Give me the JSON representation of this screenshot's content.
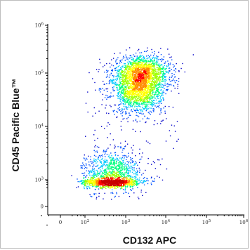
{
  "chart_data": {
    "type": "scatter",
    "subtype": "flow cytometry density dot plot (biexponential axes)",
    "xlabel": "CD132 APC",
    "ylabel": "CD45 Pacific Blue™",
    "x_scale": "biexponential",
    "y_scale": "biexponential",
    "x_ticks": [
      {
        "label": "0",
        "value": 0
      },
      {
        "label": "10",
        "sup": "2",
        "value": 100
      },
      {
        "label": "10",
        "sup": "3",
        "value": 1000
      },
      {
        "label": "10",
        "sup": "4",
        "value": 10000
      },
      {
        "label": "10",
        "sup": "5",
        "value": 100000
      },
      {
        "label": "10",
        "sup": "6",
        "value": 1000000
      }
    ],
    "y_ticks": [
      {
        "label": "0",
        "value": 0
      },
      {
        "label": "10",
        "sup": "3",
        "value": 1000
      },
      {
        "label": "10",
        "sup": "4",
        "value": 10000
      },
      {
        "label": "10",
        "sup": "5",
        "value": 100000
      },
      {
        "label": "10",
        "sup": "6",
        "value": 1000000
      }
    ],
    "grid": false,
    "legend": "none",
    "colormap": [
      "#0000c8",
      "#0050ff",
      "#00c8ff",
      "#00ff80",
      "#a0ff00",
      "#ffff00",
      "#ff8c00",
      "#ff0000",
      "#c80000"
    ],
    "populations": [
      {
        "x_center": 450,
        "y_center": 900,
        "x_spread_decades": 0.35,
        "y_spread_decades": 0.28,
        "relative_density": 1.0
      },
      {
        "x_center": 2500,
        "y_center": 100000,
        "x_spread_decades": 0.35,
        "y_spread_decades": 0.18,
        "relative_density": 0.9
      },
      {
        "x_center": 2000,
        "y_center": 45000,
        "x_spread_decades": 0.3,
        "y_spread_decades": 0.2,
        "relative_density": 0.7
      }
    ]
  }
}
